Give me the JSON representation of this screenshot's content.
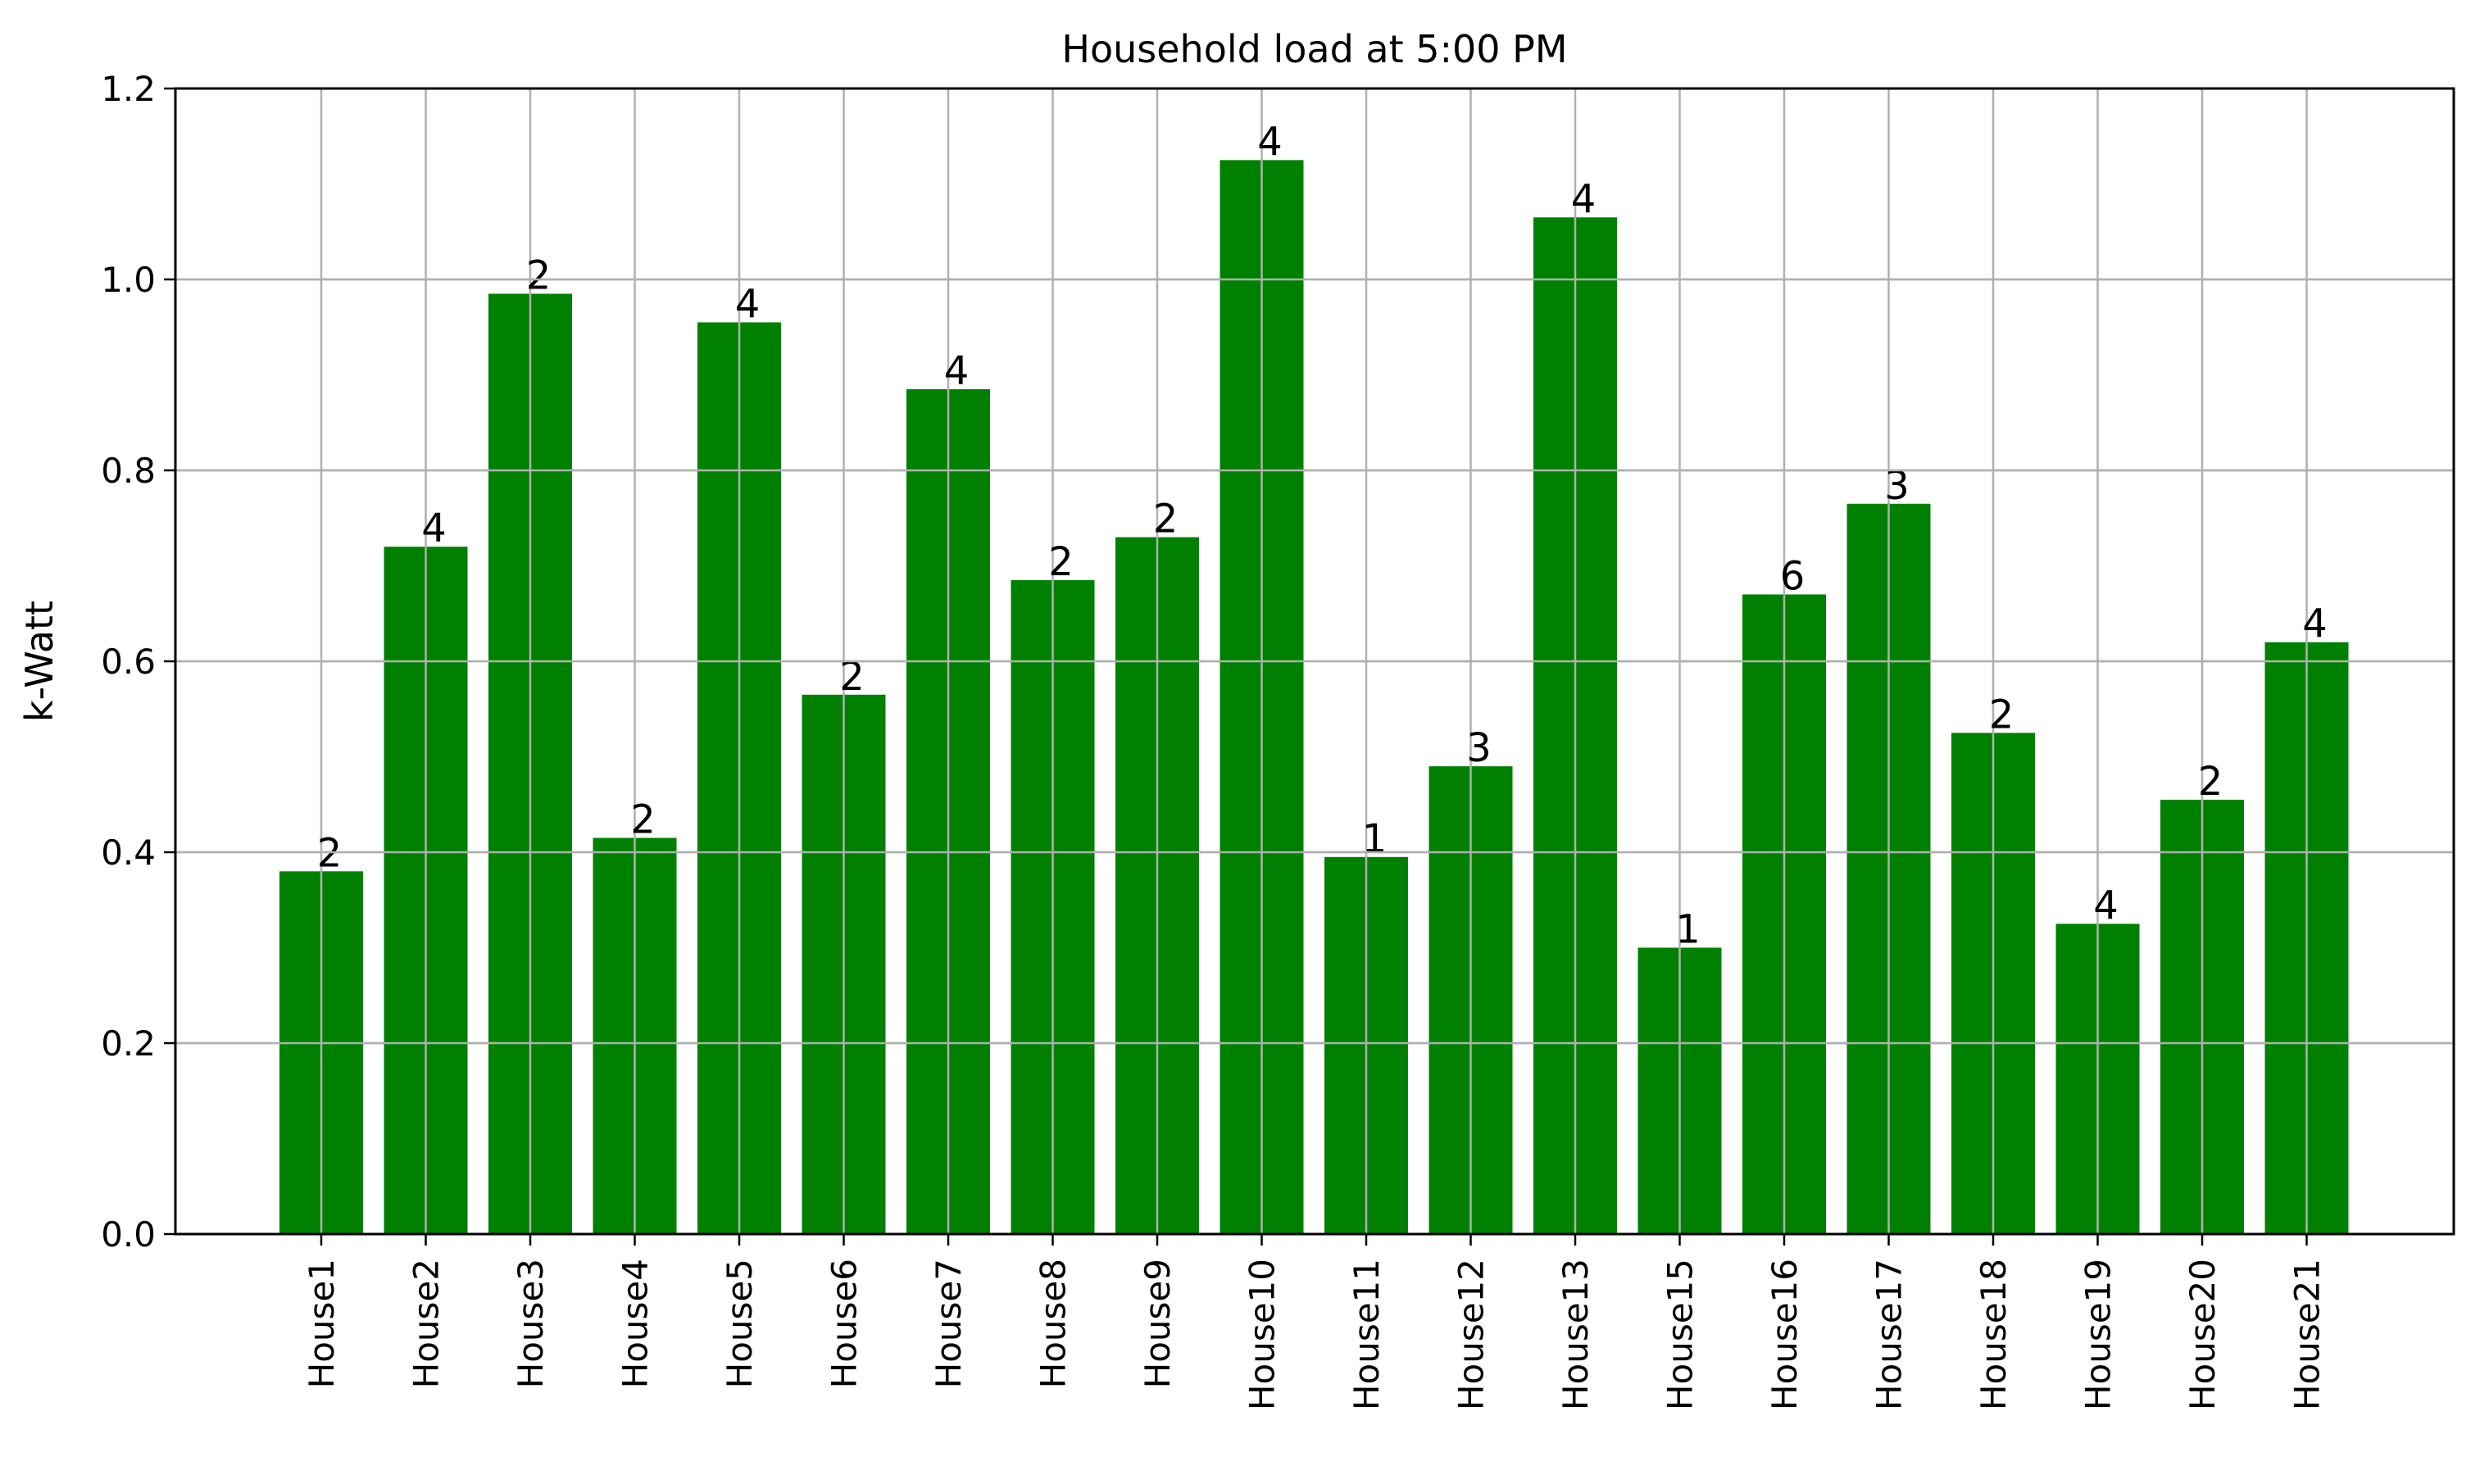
{
  "chart_data": {
    "type": "bar",
    "title": "Household load at 5:00 PM",
    "xlabel": "",
    "ylabel": "k-Watt",
    "categories": [
      "House1",
      "House2",
      "House3",
      "House4",
      "House5",
      "House6",
      "House7",
      "House8",
      "House9",
      "House10",
      "House11",
      "House12",
      "House13",
      "House15",
      "House16",
      "House17",
      "House18",
      "House19",
      "House20",
      "House21"
    ],
    "values": [
      0.38,
      0.72,
      0.985,
      0.415,
      0.955,
      0.565,
      0.885,
      0.685,
      0.73,
      1.125,
      0.395,
      0.49,
      1.065,
      0.3,
      0.67,
      0.765,
      0.525,
      0.325,
      0.455,
      0.62
    ],
    "bar_labels": [
      "2",
      "4",
      "2",
      "2",
      "4",
      "2",
      "4",
      "2",
      "2",
      "4",
      "1",
      "3",
      "4",
      "1",
      "6",
      "3",
      "2",
      "4",
      "2",
      "4"
    ],
    "ylim": [
      0,
      1.2
    ],
    "yticks": [
      "0.0",
      "0.2",
      "0.4",
      "0.6",
      "0.8",
      "1.0",
      "1.2"
    ],
    "ytick_values": [
      0,
      0.2,
      0.4,
      0.6,
      0.8,
      1.0,
      1.2
    ],
    "grid": true,
    "bar_color": "#008000"
  }
}
